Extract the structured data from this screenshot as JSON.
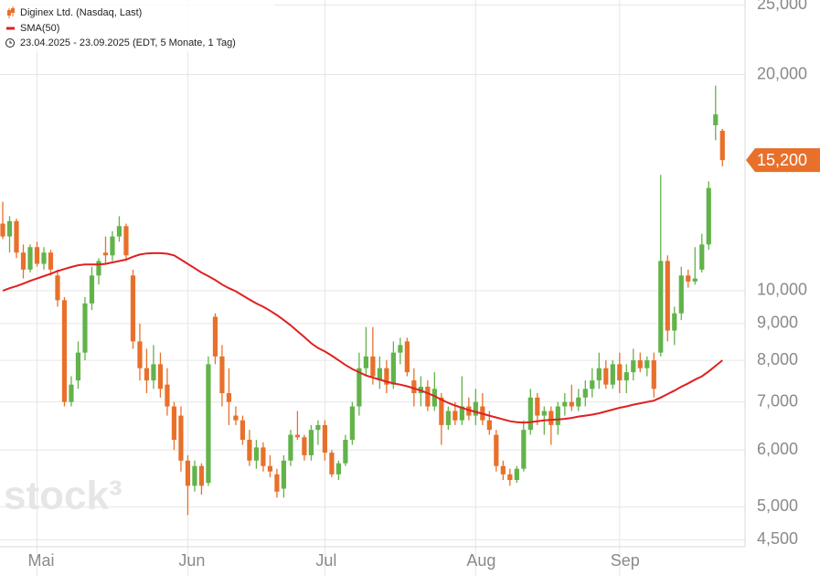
{
  "chart_data": {
    "type": "candlestick",
    "legend": [
      {
        "text": "Diginex Ltd. (Nasdaq, Last)",
        "color": "#e8702a"
      },
      {
        "text": "SMA(50)",
        "color": "#e02020"
      }
    ],
    "period": "23.04.2025 - 23.09.2025  (EDT, 5 Monate, 1 Tag)",
    "watermark": "stock³",
    "log_scale": true,
    "grid": true,
    "ylim": [
      4400,
      25400
    ],
    "yticks": [
      {
        "value": 4500,
        "label": "4,500"
      },
      {
        "value": 5000,
        "label": "5,000"
      },
      {
        "value": 6000,
        "label": "6,000"
      },
      {
        "value": 7000,
        "label": "7,000"
      },
      {
        "value": 8000,
        "label": "8,000"
      },
      {
        "value": 9000,
        "label": "9,000"
      },
      {
        "value": 10000,
        "label": "10,000"
      },
      {
        "value": 20000,
        "label": "20,000"
      },
      {
        "value": 25000,
        "label": "25,000"
      }
    ],
    "xlim": [
      -0.4,
      108.3
    ],
    "xticks": [
      {
        "value": 5,
        "label": "Mai"
      },
      {
        "value": 27,
        "label": "Jun"
      },
      {
        "value": 47,
        "label": "Jul"
      },
      {
        "value": 69,
        "label": "Aug"
      },
      {
        "value": 90,
        "label": "Sep"
      }
    ],
    "last_price": {
      "value": 15200,
      "label": "15,200"
    },
    "up_color": "#62b34a",
    "down_color": "#e8702a",
    "series": [
      {
        "name": "Diginex Ltd. (Nasdaq, Last)",
        "open": [
          12400,
          11900,
          12500,
          11300,
          10700,
          11500,
          10900,
          11300,
          10500,
          9700,
          7000,
          7500,
          8200,
          9600,
          10500,
          11300,
          11200,
          11900,
          12300,
          10500,
          8500,
          7800,
          7500,
          7900,
          7400,
          6900,
          6700,
          5800,
          5350,
          5700,
          5400,
          9200,
          8100,
          7200,
          6700,
          6600,
          6200,
          5800,
          6050,
          5700,
          5550,
          5300,
          5800,
          6300,
          6250,
          5900,
          6400,
          6500,
          5950,
          5550,
          5750,
          6200,
          6900,
          7800,
          8100,
          7500,
          7800,
          7400,
          8200,
          8500,
          7500,
          7200,
          7350,
          6900,
          7100,
          6500,
          6800,
          6600,
          6900,
          6700,
          6900,
          6600,
          6300,
          5700,
          5550,
          5450,
          5650,
          6400,
          7100,
          6700,
          6800,
          6500,
          6900,
          7000,
          6900,
          7100,
          7300,
          7500,
          7800,
          7400,
          7900,
          7500,
          7700,
          8000,
          7800,
          8000,
          8200,
          11000,
          8800,
          9300,
          10500,
          10300,
          10700,
          11600,
          17000,
          16700
        ],
        "high": [
          13300,
          12700,
          12600,
          11600,
          11600,
          11700,
          11500,
          11400,
          10700,
          9800,
          7600,
          8500,
          9800,
          10800,
          11100,
          11900,
          12100,
          12700,
          12400,
          10700,
          9000,
          8300,
          8400,
          8200,
          7800,
          7000,
          6900,
          5900,
          5800,
          5750,
          8100,
          9300,
          8400,
          7800,
          6900,
          6700,
          6400,
          6200,
          6150,
          5900,
          5650,
          5900,
          6400,
          6800,
          6300,
          6500,
          6600,
          6600,
          6000,
          5800,
          6300,
          7000,
          8200,
          8900,
          8900,
          8100,
          8000,
          8500,
          8600,
          8600,
          7800,
          7600,
          7500,
          7700,
          7200,
          6900,
          7000,
          7600,
          7100,
          7300,
          7200,
          6800,
          6400,
          5800,
          5650,
          5700,
          6600,
          7300,
          7200,
          6900,
          6900,
          7000,
          7200,
          7400,
          7300,
          7500,
          7800,
          8200,
          8000,
          8000,
          8200,
          7900,
          8300,
          8200,
          8100,
          8200,
          14500,
          11200,
          9500,
          10800,
          10700,
          11500,
          12000,
          14200,
          19300,
          16800
        ],
        "low": [
          11800,
          11300,
          11100,
          10400,
          10600,
          10800,
          10700,
          10500,
          9500,
          6900,
          6900,
          7300,
          8000,
          9400,
          10200,
          10900,
          11000,
          11700,
          11000,
          8300,
          7500,
          7200,
          7300,
          7100,
          6700,
          6000,
          5600,
          4870,
          5250,
          5200,
          5350,
          7900,
          6900,
          6500,
          6500,
          6100,
          5700,
          5650,
          5600,
          5500,
          5150,
          5150,
          5700,
          6200,
          5800,
          5800,
          6100,
          5800,
          5500,
          5450,
          5700,
          6100,
          6700,
          7600,
          7400,
          7300,
          7200,
          7300,
          7900,
          7600,
          6900,
          6900,
          6800,
          6800,
          6100,
          6400,
          6500,
          6500,
          6600,
          6500,
          6500,
          6300,
          5600,
          5450,
          5350,
          5400,
          5600,
          6300,
          6500,
          6300,
          6100,
          6300,
          6700,
          6800,
          6800,
          6900,
          7100,
          7300,
          7300,
          7300,
          7200,
          7200,
          7500,
          7700,
          7600,
          7100,
          8100,
          8500,
          8400,
          9100,
          10100,
          10200,
          10600,
          11400,
          16200,
          14900
        ],
        "close": [
          11900,
          12500,
          11300,
          10700,
          11500,
          10900,
          11300,
          10700,
          9700,
          7000,
          7400,
          8200,
          9600,
          10500,
          11000,
          11200,
          11900,
          12300,
          11200,
          8500,
          7800,
          7500,
          7900,
          7300,
          6900,
          6200,
          5800,
          5350,
          5700,
          5350,
          7900,
          8100,
          7200,
          7000,
          6600,
          6200,
          5800,
          6050,
          5700,
          5600,
          5250,
          5800,
          6300,
          6250,
          5900,
          6400,
          6500,
          5950,
          5550,
          5750,
          6200,
          6900,
          7800,
          8100,
          7600,
          7800,
          7400,
          8200,
          8400,
          7700,
          7200,
          7350,
          6900,
          7300,
          6500,
          6800,
          6600,
          6900,
          6700,
          7000,
          6600,
          6400,
          5700,
          5550,
          5450,
          5650,
          6400,
          7100,
          6700,
          6800,
          6500,
          6900,
          7000,
          6900,
          7100,
          7300,
          7500,
          7800,
          7400,
          7900,
          7500,
          7700,
          8000,
          7800,
          8000,
          7300,
          11000,
          8800,
          9300,
          10500,
          10300,
          10400,
          11600,
          13900,
          17600,
          15200
        ]
      },
      {
        "name": "SMA(50)",
        "color": "#e02020",
        "values": [
          10000,
          10080,
          10150,
          10230,
          10320,
          10400,
          10480,
          10560,
          10650,
          10720,
          10790,
          10850,
          10880,
          10880,
          10880,
          10900,
          10950,
          11000,
          11050,
          11150,
          11230,
          11270,
          11280,
          11280,
          11260,
          11200,
          11050,
          10900,
          10750,
          10600,
          10480,
          10350,
          10200,
          10080,
          9980,
          9850,
          9720,
          9600,
          9500,
          9380,
          9250,
          9100,
          8950,
          8780,
          8620,
          8450,
          8320,
          8230,
          8120,
          8000,
          7880,
          7780,
          7700,
          7620,
          7570,
          7520,
          7470,
          7430,
          7400,
          7360,
          7310,
          7260,
          7200,
          7130,
          7050,
          6980,
          6920,
          6870,
          6820,
          6780,
          6740,
          6700,
          6660,
          6620,
          6580,
          6560,
          6550,
          6560,
          6580,
          6600,
          6610,
          6620,
          6630,
          6650,
          6680,
          6700,
          6720,
          6750,
          6790,
          6830,
          6870,
          6900,
          6940,
          6970,
          7000,
          7030,
          7100,
          7180,
          7260,
          7350,
          7430,
          7520,
          7600,
          7720,
          7860,
          8000
        ]
      }
    ]
  }
}
